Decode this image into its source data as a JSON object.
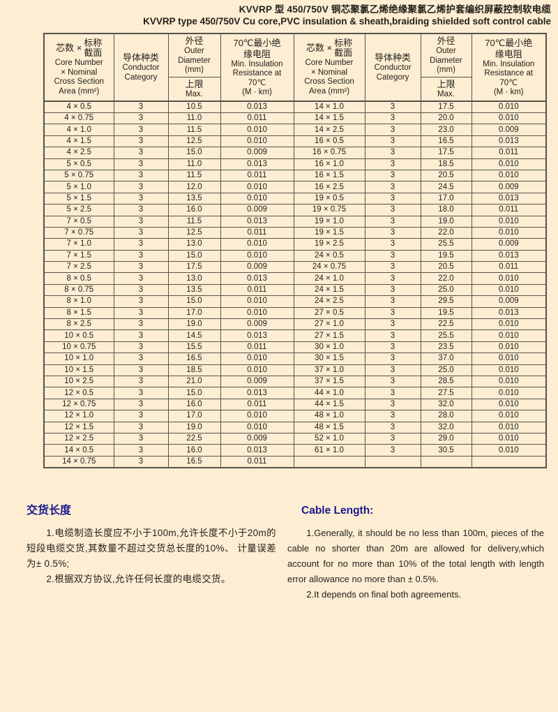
{
  "title": {
    "line1_cn": "KVVRP 型 450/750V 铜芯聚氯乙烯绝缘聚氯乙烯护套编织屏蔽控制软电缆",
    "line2_en": "KVVRP type 450/750V Cu core,PVC insulation & sheath,braiding shielded soft control cable"
  },
  "table": {
    "header": {
      "col1": {
        "cn_prefix": "芯数 ×",
        "cn_stack_top": "标称",
        "cn_stack_bottom": "截面",
        "en_lines": [
          "Core Number",
          "× Nominal",
          "Cross Section",
          "Area (mm²)"
        ]
      },
      "col2": {
        "cn": "导体种类",
        "en_lines": [
          "Conductor",
          "Category"
        ]
      },
      "col3": {
        "cn": "外径",
        "en_lines": [
          "Outer",
          "Diameter",
          "(mm)"
        ],
        "sub_cn": "上限",
        "sub_en": "Max."
      },
      "col4": {
        "lines": [
          "70℃最小绝",
          "缘电阻",
          "Min. Insulation",
          "Resistance at",
          "70℃",
          "(M · km)"
        ]
      }
    },
    "left_rows": [
      [
        "4 × 0.5",
        "3",
        "10.5",
        "0.013"
      ],
      [
        "4 × 0.75",
        "3",
        "11.0",
        "0.011"
      ],
      [
        "4 × 1.0",
        "3",
        "11.5",
        "0.010"
      ],
      [
        "4 × 1.5",
        "3",
        "12.5",
        "0.010"
      ],
      [
        "4 × 2.5",
        "3",
        "15.0",
        "0.009"
      ],
      [
        "5 × 0.5",
        "3",
        "11.0",
        "0.013"
      ],
      [
        "5 × 0.75",
        "3",
        "11.5",
        "0.011"
      ],
      [
        "5 × 1.0",
        "3",
        "12.0",
        "0.010"
      ],
      [
        "5 × 1.5",
        "3",
        "13.5",
        "0.010"
      ],
      [
        "5 × 2.5",
        "3",
        "16.0",
        "0.009"
      ],
      [
        "7 × 0.5",
        "3",
        "11.5",
        "0.013"
      ],
      [
        "7 × 0.75",
        "3",
        "12.5",
        "0.011"
      ],
      [
        "7 × 1.0",
        "3",
        "13.0",
        "0.010"
      ],
      [
        "7 × 1.5",
        "3",
        "15.0",
        "0.010"
      ],
      [
        "7 × 2.5",
        "3",
        "17.5",
        "0.009"
      ],
      [
        "8 × 0.5",
        "3",
        "13.0",
        "0.013"
      ],
      [
        "8 × 0.75",
        "3",
        "13.5",
        "0.011"
      ],
      [
        "8 × 1.0",
        "3",
        "15.0",
        "0.010"
      ],
      [
        "8 × 1.5",
        "3",
        "17.0",
        "0.010"
      ],
      [
        "8 × 2.5",
        "3",
        "19.0",
        "0.009"
      ],
      [
        "10 × 0.5",
        "3",
        "14.5",
        "0.013"
      ],
      [
        "10 × 0.75",
        "3",
        "15.5",
        "0.011"
      ],
      [
        "10 × 1.0",
        "3",
        "16.5",
        "0.010"
      ],
      [
        "10 × 1.5",
        "3",
        "18.5",
        "0.010"
      ],
      [
        "10 × 2.5",
        "3",
        "21.0",
        "0.009"
      ],
      [
        "12 × 0.5",
        "3",
        "15.0",
        "0.013"
      ],
      [
        "12 × 0.75",
        "3",
        "16.0",
        "0.011"
      ],
      [
        "12 × 1.0",
        "3",
        "17.0",
        "0.010"
      ],
      [
        "12 × 1.5",
        "3",
        "19.0",
        "0.010"
      ],
      [
        "12 × 2.5",
        "3",
        "22.5",
        "0.009"
      ],
      [
        "14 × 0.5",
        "3",
        "16.0",
        "0.013"
      ],
      [
        "14 × 0.75",
        "3",
        "16.5",
        "0.011"
      ]
    ],
    "right_rows": [
      [
        "14 × 1.0",
        "3",
        "17.5",
        "0.010"
      ],
      [
        "14 × 1.5",
        "3",
        "20.0",
        "0.010"
      ],
      [
        "14 × 2.5",
        "3",
        "23.0",
        "0.009"
      ],
      [
        "16 × 0.5",
        "3",
        "16.5",
        "0.013"
      ],
      [
        "16 × 0.75",
        "3",
        "17.5",
        "0.011"
      ],
      [
        "16 × 1.0",
        "3",
        "18.5",
        "0.010"
      ],
      [
        "16 × 1.5",
        "3",
        "20.5",
        "0.010"
      ],
      [
        "16 × 2.5",
        "3",
        "24.5",
        "0.009"
      ],
      [
        "19 × 0.5",
        "3",
        "17.0",
        "0.013"
      ],
      [
        "19 × 0.75",
        "3",
        "18.0",
        "0.011"
      ],
      [
        "19 × 1.0",
        "3",
        "19.0",
        "0.010"
      ],
      [
        "19 × 1.5",
        "3",
        "22.0",
        "0.010"
      ],
      [
        "19 × 2.5",
        "3",
        "25.5",
        "0.009"
      ],
      [
        "24 × 0.5",
        "3",
        "19.5",
        "0.013"
      ],
      [
        "24 × 0.75",
        "3",
        "20.5",
        "0.011"
      ],
      [
        "24 × 1.0",
        "3",
        "22.0",
        "0.010"
      ],
      [
        "24 × 1.5",
        "3",
        "25.0",
        "0.010"
      ],
      [
        "24 × 2.5",
        "3",
        "29.5",
        "0.009"
      ],
      [
        "27 × 0.5",
        "3",
        "19.5",
        "0.013"
      ],
      [
        "27 × 1.0",
        "3",
        "22.5",
        "0.010"
      ],
      [
        "27 × 1.5",
        "3",
        "25.5",
        "0.010"
      ],
      [
        "30 × 1.0",
        "3",
        "23.5",
        "0.010"
      ],
      [
        "30 × 1.5",
        "3",
        "37.0",
        "0.010"
      ],
      [
        "37 × 1.0",
        "3",
        "25.0",
        "0.010"
      ],
      [
        "37 × 1.5",
        "3",
        "28.5",
        "0.010"
      ],
      [
        "44 × 1.0",
        "3",
        "27.5",
        "0.010"
      ],
      [
        "44 × 1.5",
        "3",
        "32.0",
        "0.010"
      ],
      [
        "48 × 1.0",
        "3",
        "28.0",
        "0.010"
      ],
      [
        "48 × 1.5",
        "3",
        "32.0",
        "0.010"
      ],
      [
        "52 × 1.0",
        "3",
        "29.0",
        "0.010"
      ],
      [
        "61 × 1.0",
        "3",
        "30.5",
        "0.010"
      ],
      [
        "",
        "",
        "",
        ""
      ]
    ]
  },
  "notes_cn": {
    "heading": "交货长度",
    "p1": "1.电缆制造长度应不小于100m,允许长度不小于20m的短段电缆交货,其数量不超过交货总长度的10%、 计量误差为± 0.5%;",
    "p2": "2.根据双方协议,允许任何长度的电缆交货。"
  },
  "notes_en": {
    "heading": "Cable Length:",
    "p1": "1.Generally, it should be no less than 100m, pieces of the cable no shorter than 20m are allowed for delivery,which account for no more than 10% of the total length with length error allowance no more than ± 0.5%.",
    "p2": "2.It depends on final both agreements."
  },
  "colors": {
    "bg": "#fdeed3",
    "line": "#56524a",
    "heading": "#1a1a8f",
    "text": "#24211c"
  }
}
